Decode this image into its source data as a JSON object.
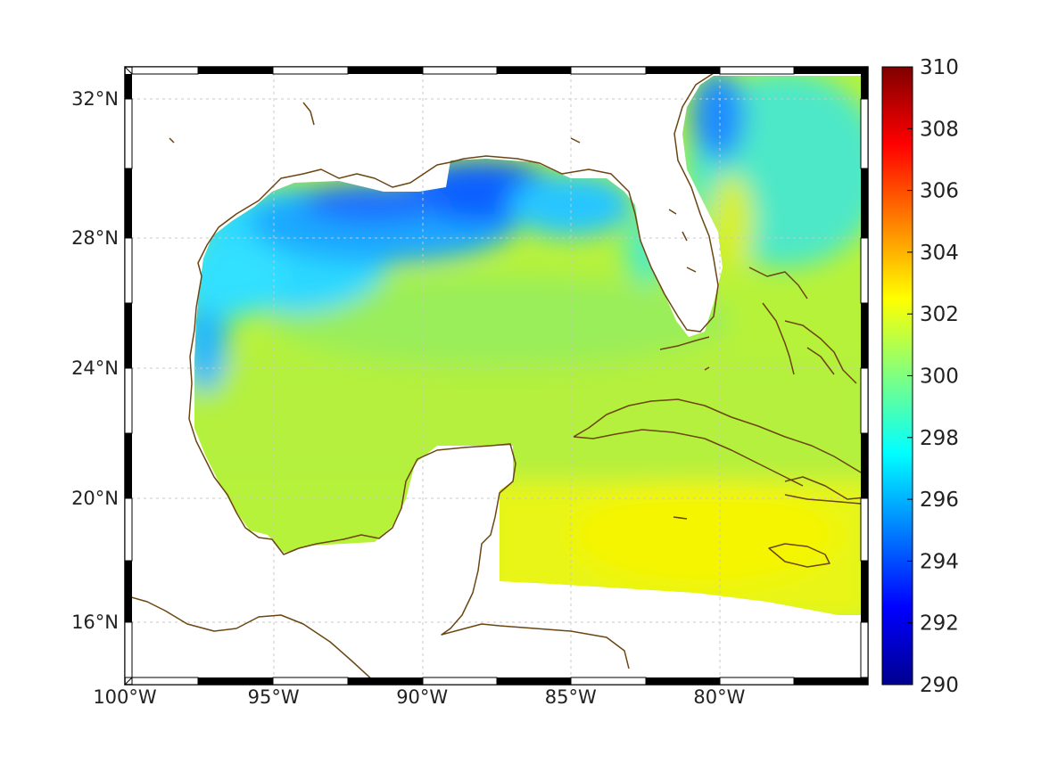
{
  "map": {
    "lon_range": [
      -100,
      -75
    ],
    "lat_range": [
      14,
      33
    ],
    "lon_ticks": [
      {
        "value": -100,
        "label": "100°W"
      },
      {
        "value": -95,
        "label": "95°W"
      },
      {
        "value": -90,
        "label": "90°W"
      },
      {
        "value": -85,
        "label": "85°W"
      },
      {
        "value": -80,
        "label": "80°W"
      }
    ],
    "lat_ticks": [
      {
        "value": 32,
        "label": "32°N"
      },
      {
        "value": 28,
        "label": "28°N"
      },
      {
        "value": 24,
        "label": "24°N"
      },
      {
        "value": 20,
        "label": "20°N"
      },
      {
        "value": 16,
        "label": "16°N"
      }
    ],
    "grid": true,
    "coastline_color": "#6b4512",
    "field_description_shown": false
  },
  "colorbar": {
    "min": 290,
    "max": 310,
    "ticks": [
      {
        "value": 310,
        "label": "310"
      },
      {
        "value": 308,
        "label": "308"
      },
      {
        "value": 306,
        "label": "306"
      },
      {
        "value": 304,
        "label": "304"
      },
      {
        "value": 302,
        "label": "302"
      },
      {
        "value": 300,
        "label": "300"
      },
      {
        "value": 298,
        "label": "298"
      },
      {
        "value": 296,
        "label": "296"
      },
      {
        "value": 294,
        "label": "294"
      },
      {
        "value": 292,
        "label": "292"
      },
      {
        "value": 290,
        "label": "290"
      }
    ],
    "colormap": "jet"
  }
}
